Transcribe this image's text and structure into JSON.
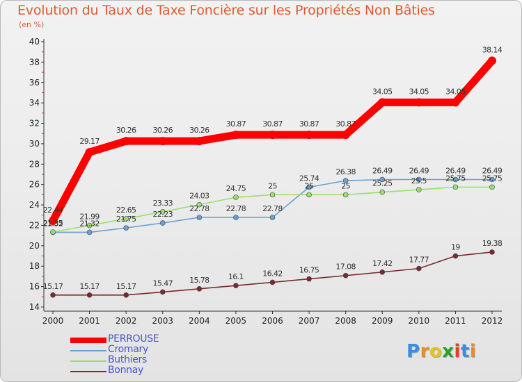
{
  "header": {
    "title": "Evolution du Taux de Taxe Foncière sur les Propriétés Non Bâties",
    "subtitle": "(en %)"
  },
  "chart_data": {
    "type": "line",
    "title": "Evolution du Taux de Taxe Foncière sur les Propriétés Non Bâties",
    "ylabel": "(en %)",
    "xlabel": "",
    "ylim": [
      14,
      40
    ],
    "yticks": [
      14,
      16,
      18,
      20,
      22,
      24,
      26,
      28,
      30,
      32,
      34,
      36,
      38,
      40
    ],
    "grid": false,
    "legend_position": "bottom-left",
    "categories": [
      "2000",
      "2001",
      "2002",
      "2003",
      "2004",
      "2005",
      "2006",
      "2007",
      "2008",
      "2009",
      "2010",
      "2011",
      "2012"
    ],
    "series": [
      {
        "name": "PERROUSE",
        "color": "#ff0000",
        "values": [
          22.44,
          29.17,
          30.26,
          30.26,
          30.26,
          30.87,
          30.87,
          30.87,
          30.87,
          34.05,
          34.05,
          34.05,
          38.14
        ],
        "labels": [
          "22.44",
          "29.17",
          "30.26",
          "30.26",
          "30.26",
          "30.87",
          "30.87",
          "30.87",
          "30.87",
          "34.05",
          "34.05",
          "34.05",
          "38.14"
        ]
      },
      {
        "name": "Cromary",
        "color": "#6aa0d0",
        "values": [
          21.32,
          21.32,
          21.75,
          22.23,
          22.78,
          22.78,
          22.78,
          25.74,
          26.38,
          26.49,
          26.49,
          26.49,
          26.49
        ],
        "labels": [
          "21.32",
          "21.32",
          "21.75",
          "22.23",
          "22.78",
          "22.78",
          "22.78",
          "25.74",
          "26.38",
          "26.49",
          "26.49",
          "26.49",
          "26.49"
        ]
      },
      {
        "name": "Buthiers",
        "color": "#99e06a",
        "values": [
          21.35,
          21.99,
          22.65,
          23.33,
          24.03,
          24.75,
          25,
          25,
          25,
          25.25,
          25.5,
          25.75,
          25.75
        ],
        "labels": [
          "21.35",
          "21.99",
          "22.65",
          "23.33",
          "24.03",
          "24.75",
          "25",
          "25",
          "25",
          "25.25",
          "25.5",
          "25.75",
          "25.75"
        ]
      },
      {
        "name": "Bonnay",
        "color": "#7a2a2a",
        "values": [
          15.17,
          15.17,
          15.17,
          15.47,
          15.78,
          16.1,
          16.42,
          16.75,
          17.08,
          17.42,
          17.77,
          19,
          19.38
        ],
        "labels": [
          "15.17",
          "15.17",
          "15.17",
          "15.47",
          "15.78",
          "16.1",
          "16.42",
          "16.75",
          "17.08",
          "17.42",
          "17.77",
          "19",
          "19.38"
        ]
      }
    ]
  },
  "legend": {
    "items": [
      {
        "label": "PERROUSE",
        "color": "#ff0000",
        "text_color": "#4a55c8"
      },
      {
        "label": "Cromary",
        "color": "#6aa0d0",
        "text_color": "#4a55c8"
      },
      {
        "label": "Buthiers",
        "color": "#99e06a",
        "text_color": "#4a55c8"
      },
      {
        "label": "Bonnay",
        "color": "#7a2a2a",
        "text_color": "#4a55c8"
      }
    ]
  },
  "logo": {
    "letters": [
      "P",
      "r",
      "o",
      "x",
      "i",
      "t",
      "i"
    ],
    "colors": [
      "#3a8ee0",
      "#f08a1a",
      "#e8c21a",
      "#2aa02a",
      "#e04020",
      "#3a8ee0",
      "#f08a1a"
    ]
  }
}
